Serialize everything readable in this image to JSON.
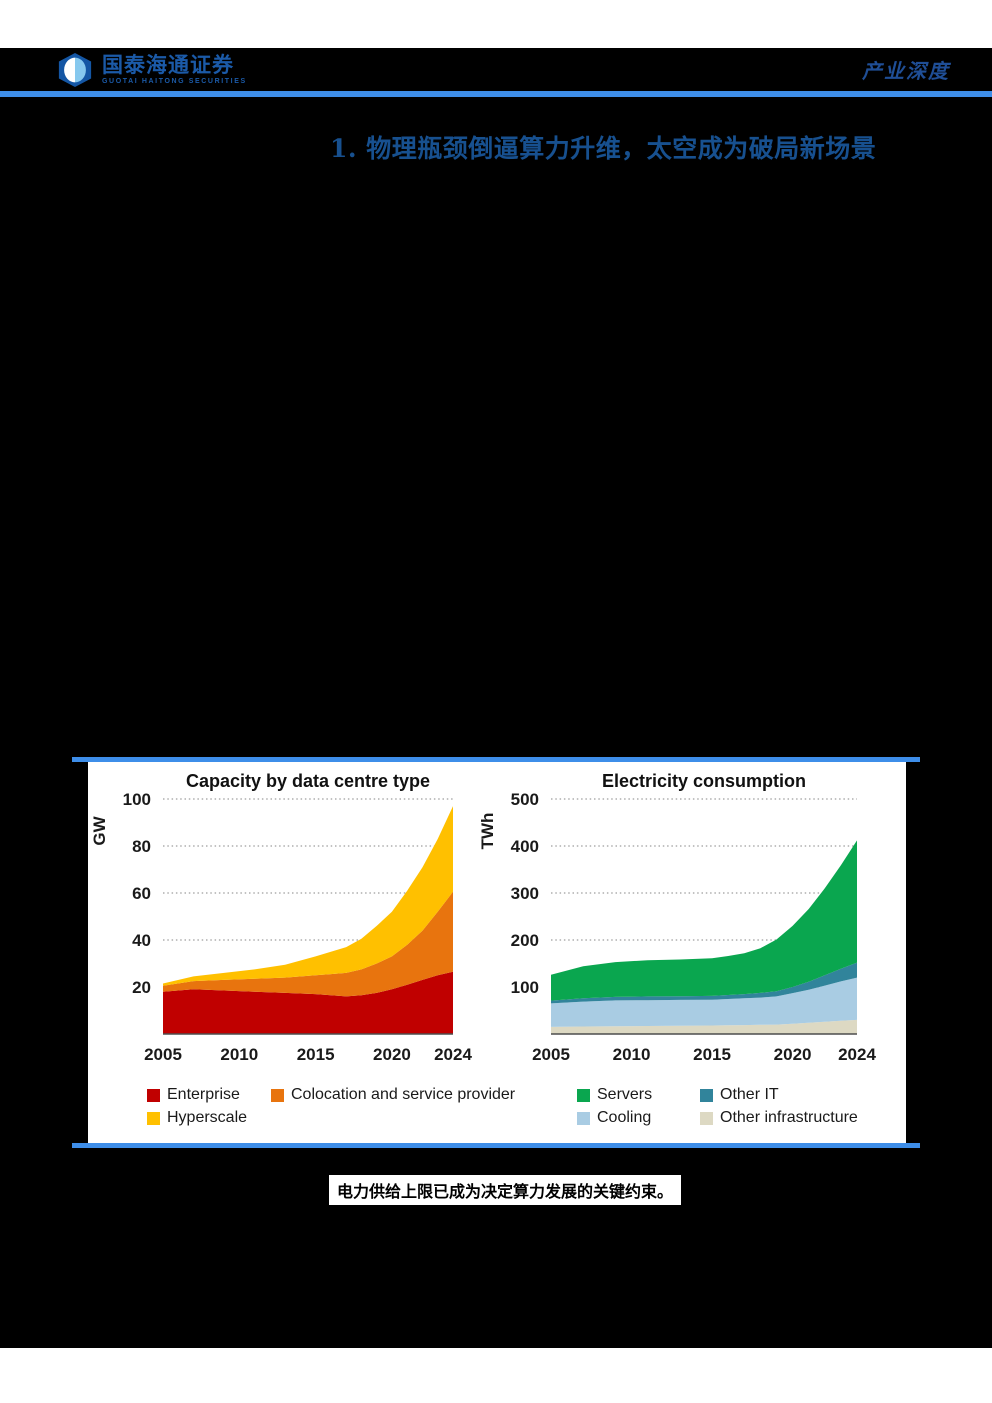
{
  "header": {
    "brand_cn": "国泰海通证券",
    "brand_en": "GUOTAI HAITONG SECURITIES",
    "doc_type": "产业深度",
    "rule_color": "#3E8EE9",
    "brand_color": "#1B5AA8",
    "doc_type_color": "#1F4E96"
  },
  "section_title": "1. 物理瓶颈倒逼算力升维，太空成为破局新场景",
  "section_title_color": "#17508F",
  "caption": "电力供给上限已成为决定算力发展的关键约束。",
  "chart_data": [
    {
      "type": "area",
      "stacked": true,
      "title": "Capacity by data centre type",
      "ylabel": "GW",
      "ylim": [
        0,
        100
      ],
      "yticks": [
        20,
        40,
        60,
        80,
        100
      ],
      "xticks": [
        2005,
        2010,
        2015,
        2020,
        2024
      ],
      "grid": "dotted",
      "legend_position": "bottom",
      "x": [
        2005,
        2007,
        2009,
        2011,
        2013,
        2015,
        2016,
        2017,
        2018,
        2019,
        2020,
        2021,
        2022,
        2023,
        2024
      ],
      "series": [
        {
          "name": "Enterprise",
          "color": "#C00000",
          "values": [
            18,
            19,
            18.5,
            18,
            17.5,
            17,
            16.5,
            16,
            16.5,
            17.5,
            19,
            21,
            23,
            25,
            26.5
          ]
        },
        {
          "name": "Colocation and service provider",
          "color": "#E8740E",
          "values": [
            2.5,
            3.5,
            4.5,
            5.5,
            6.5,
            8,
            9,
            10,
            11,
            12.5,
            14,
            17,
            21,
            27,
            34
          ]
        },
        {
          "name": "Hyperscale",
          "color": "#FFC000",
          "values": [
            1,
            2,
            3,
            4,
            5.5,
            8,
            9.5,
            11,
            13,
            16,
            19,
            23,
            27,
            31,
            36.5
          ]
        }
      ],
      "legend_rows": [
        [
          "Enterprise",
          "Colocation and service provider"
        ],
        [
          "Hyperscale"
        ]
      ]
    },
    {
      "type": "area",
      "stacked": true,
      "title": "Electricity consumption",
      "ylabel": "TWh",
      "ylim": [
        0,
        500
      ],
      "yticks": [
        100,
        200,
        300,
        400,
        500
      ],
      "xticks": [
        2005,
        2010,
        2015,
        2020,
        2024
      ],
      "grid": "dotted",
      "legend_position": "bottom",
      "x": [
        2005,
        2007,
        2009,
        2011,
        2013,
        2015,
        2016,
        2017,
        2018,
        2019,
        2020,
        2021,
        2022,
        2023,
        2024
      ],
      "series": [
        {
          "name": "Other infrastructure",
          "color": "#DDD9C3",
          "values": [
            15,
            16,
            16.5,
            17,
            17.5,
            18,
            18.5,
            19,
            19.5,
            20,
            22,
            24,
            26,
            28,
            30
          ]
        },
        {
          "name": "Cooling",
          "color": "#A9CCE3",
          "values": [
            50,
            53,
            55,
            55,
            55,
            55,
            56,
            57,
            58,
            60,
            65,
            70,
            77,
            84,
            90
          ]
        },
        {
          "name": "Other IT",
          "color": "#31849B",
          "values": [
            6,
            7,
            7.5,
            8,
            8,
            8,
            8.5,
            9,
            10,
            11,
            13,
            17,
            22,
            27,
            32
          ]
        },
        {
          "name": "Servers",
          "color": "#0AA64F",
          "values": [
            55,
            68,
            74,
            77,
            78,
            80,
            83,
            87,
            95,
            110,
            130,
            155,
            185,
            220,
            260
          ]
        }
      ],
      "legend_rows": [
        [
          "Servers",
          "Other IT"
        ],
        [
          "Cooling",
          "Other infrastructure"
        ]
      ]
    }
  ]
}
